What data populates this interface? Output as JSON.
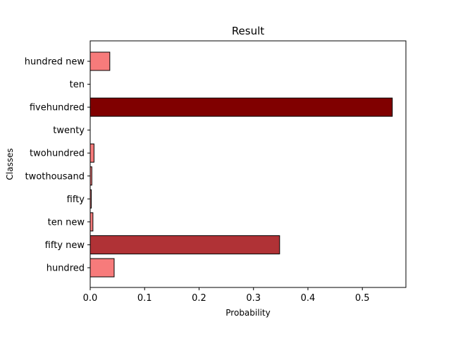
{
  "chart_data": {
    "type": "bar",
    "orientation": "horizontal",
    "title": "Result",
    "xlabel": "Probability",
    "ylabel": "Classes",
    "xlim": [
      0.0,
      0.58
    ],
    "xticks": [
      0.0,
      0.1,
      0.2,
      0.3,
      0.4,
      0.5
    ],
    "xtick_labels": [
      "0.0",
      "0.1",
      "0.2",
      "0.3",
      "0.4",
      "0.5"
    ],
    "grid": false,
    "categories": [
      "hundred",
      "fifty new",
      "ten new",
      "fifty",
      "twothousand",
      "twohundred",
      "twenty",
      "fivehundred",
      "ten",
      "hundred new"
    ],
    "values": [
      0.044,
      0.348,
      0.005,
      0.002,
      0.003,
      0.007,
      0.0,
      0.555,
      0.0,
      0.036
    ],
    "bar_colors": [
      "#f77b7b",
      "#b03236",
      "#f77b7b",
      "#f77b7b",
      "#f77b7b",
      "#f77b7b",
      "#f77b7b",
      "#800000",
      "#f77b7b",
      "#f77b7b"
    ],
    "edge_color": "#000000"
  }
}
